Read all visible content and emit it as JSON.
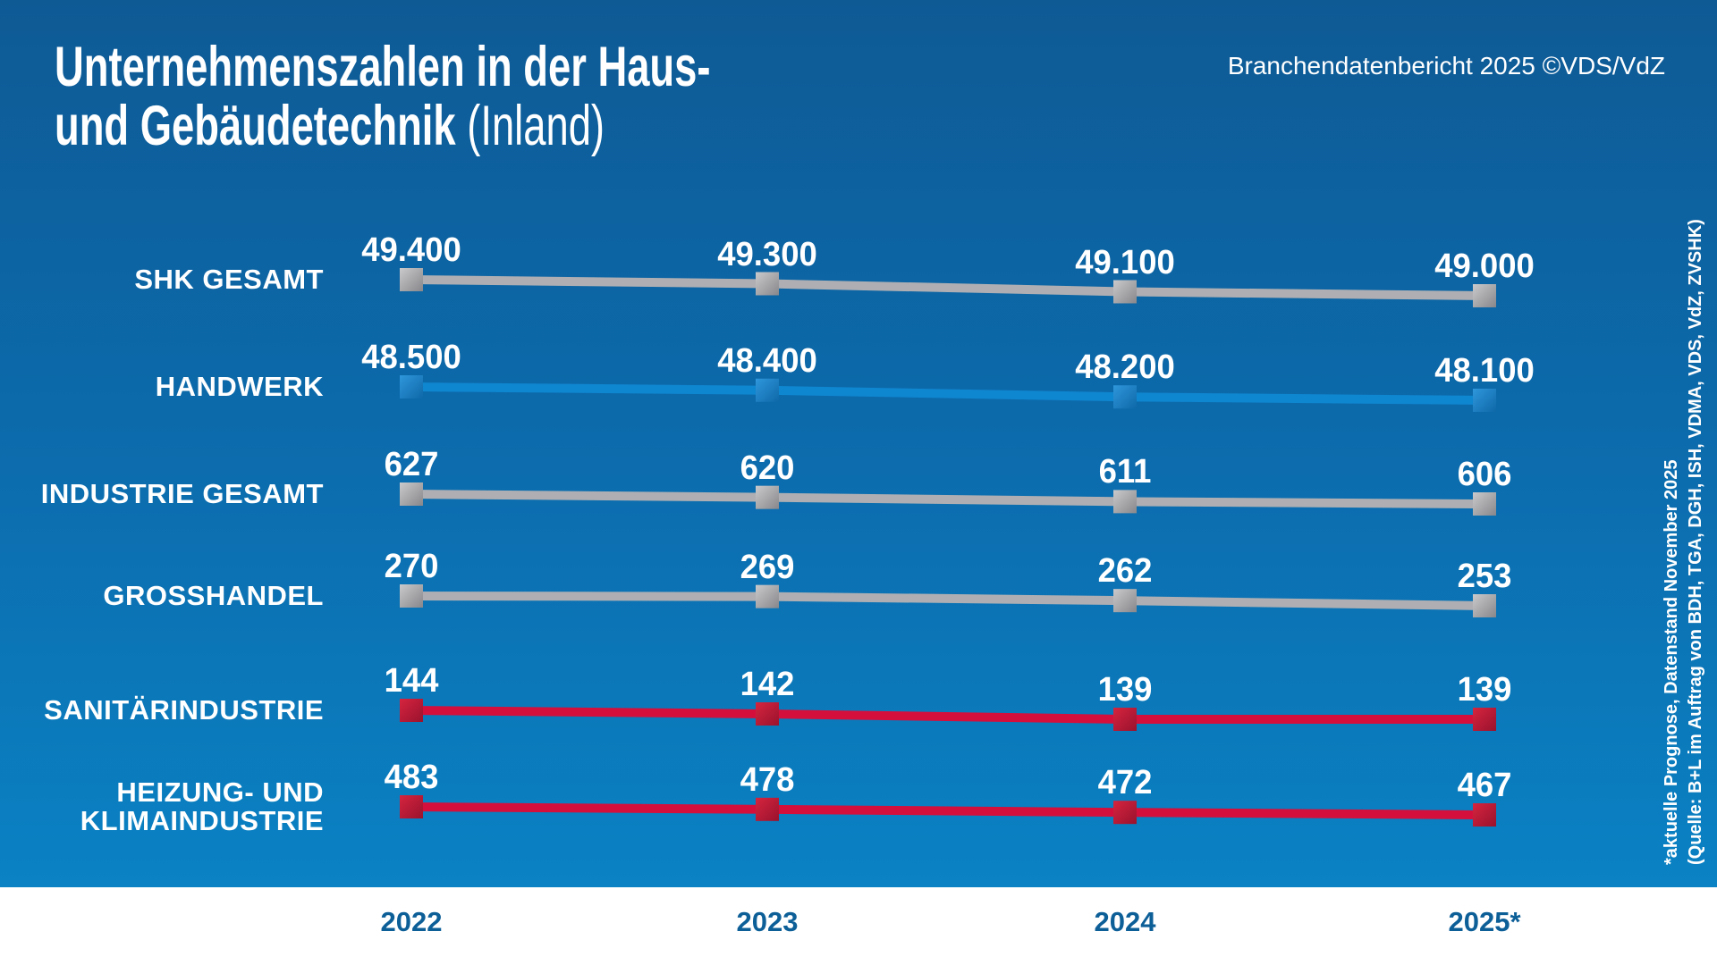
{
  "header": {
    "title_line1": "Unternehmenszahlen in der Haus-",
    "title_line2_bold": "und Gebäudetechnik",
    "title_line2_light": "(Inland)",
    "credit": "Branchendatenbericht 2025 ©VDS/VdZ"
  },
  "footnote": {
    "line1": "*aktuelle Prognose, Datenstand November 2025",
    "line2": "(Quelle: B+L im Auftrag von BDH, TGA, DGH, ISH, VDMA, VDS, VdZ, ZVSHK)"
  },
  "colors": {
    "background_top": "#0E5A95",
    "background_bottom": "#0A84C8",
    "axis_label": "#0D5F98",
    "gray": {
      "line": "#AFAFB3",
      "marker_light": "#CACACC",
      "marker_dark": "#87878B"
    },
    "blue": {
      "line": "#0F86D0",
      "marker_light": "#2F97DC",
      "marker_dark": "#0E68A8"
    },
    "red": {
      "line": "#D50F3C",
      "marker_light": "#D6243F",
      "marker_dark": "#99122D"
    }
  },
  "chart_data": {
    "type": "line",
    "title": "Unternehmenszahlen in der Haus- und Gebäudetechnik (Inland)",
    "xlabel": "",
    "ylabel": "",
    "grid": false,
    "legend_position": "left-row-labels",
    "categories": [
      "2022",
      "2023",
      "2024",
      "2025*"
    ],
    "series": [
      {
        "name": "SHK GESAMT",
        "color": "gray",
        "values": [
          49400,
          49300,
          49100,
          49000
        ],
        "labels": [
          "49.400",
          "49.300",
          "49.100",
          "49.000"
        ]
      },
      {
        "name": "HANDWERK",
        "color": "blue",
        "values": [
          48500,
          48400,
          48200,
          48100
        ],
        "labels": [
          "48.500",
          "48.400",
          "48.200",
          "48.100"
        ]
      },
      {
        "name": "INDUSTRIE GESAMT",
        "color": "gray",
        "values": [
          627,
          620,
          611,
          606
        ],
        "labels": [
          "627",
          "620",
          "611",
          "606"
        ]
      },
      {
        "name": "GROSSHANDEL",
        "color": "gray",
        "values": [
          270,
          269,
          262,
          253
        ],
        "labels": [
          "270",
          "269",
          "262",
          "253"
        ]
      },
      {
        "name": "SANITÄRINDUSTRIE",
        "color": "red",
        "values": [
          144,
          142,
          139,
          139
        ],
        "labels": [
          "144",
          "142",
          "139",
          "139"
        ]
      },
      {
        "name": "HEIZUNG- UND KLIMAINDUSTRIE",
        "color": "red",
        "name_lines": [
          "HEIZUNG- UND",
          "KLIMAINDUSTRIE"
        ],
        "values": [
          483,
          478,
          472,
          467
        ],
        "labels": [
          "483",
          "478",
          "472",
          "467"
        ]
      }
    ]
  }
}
